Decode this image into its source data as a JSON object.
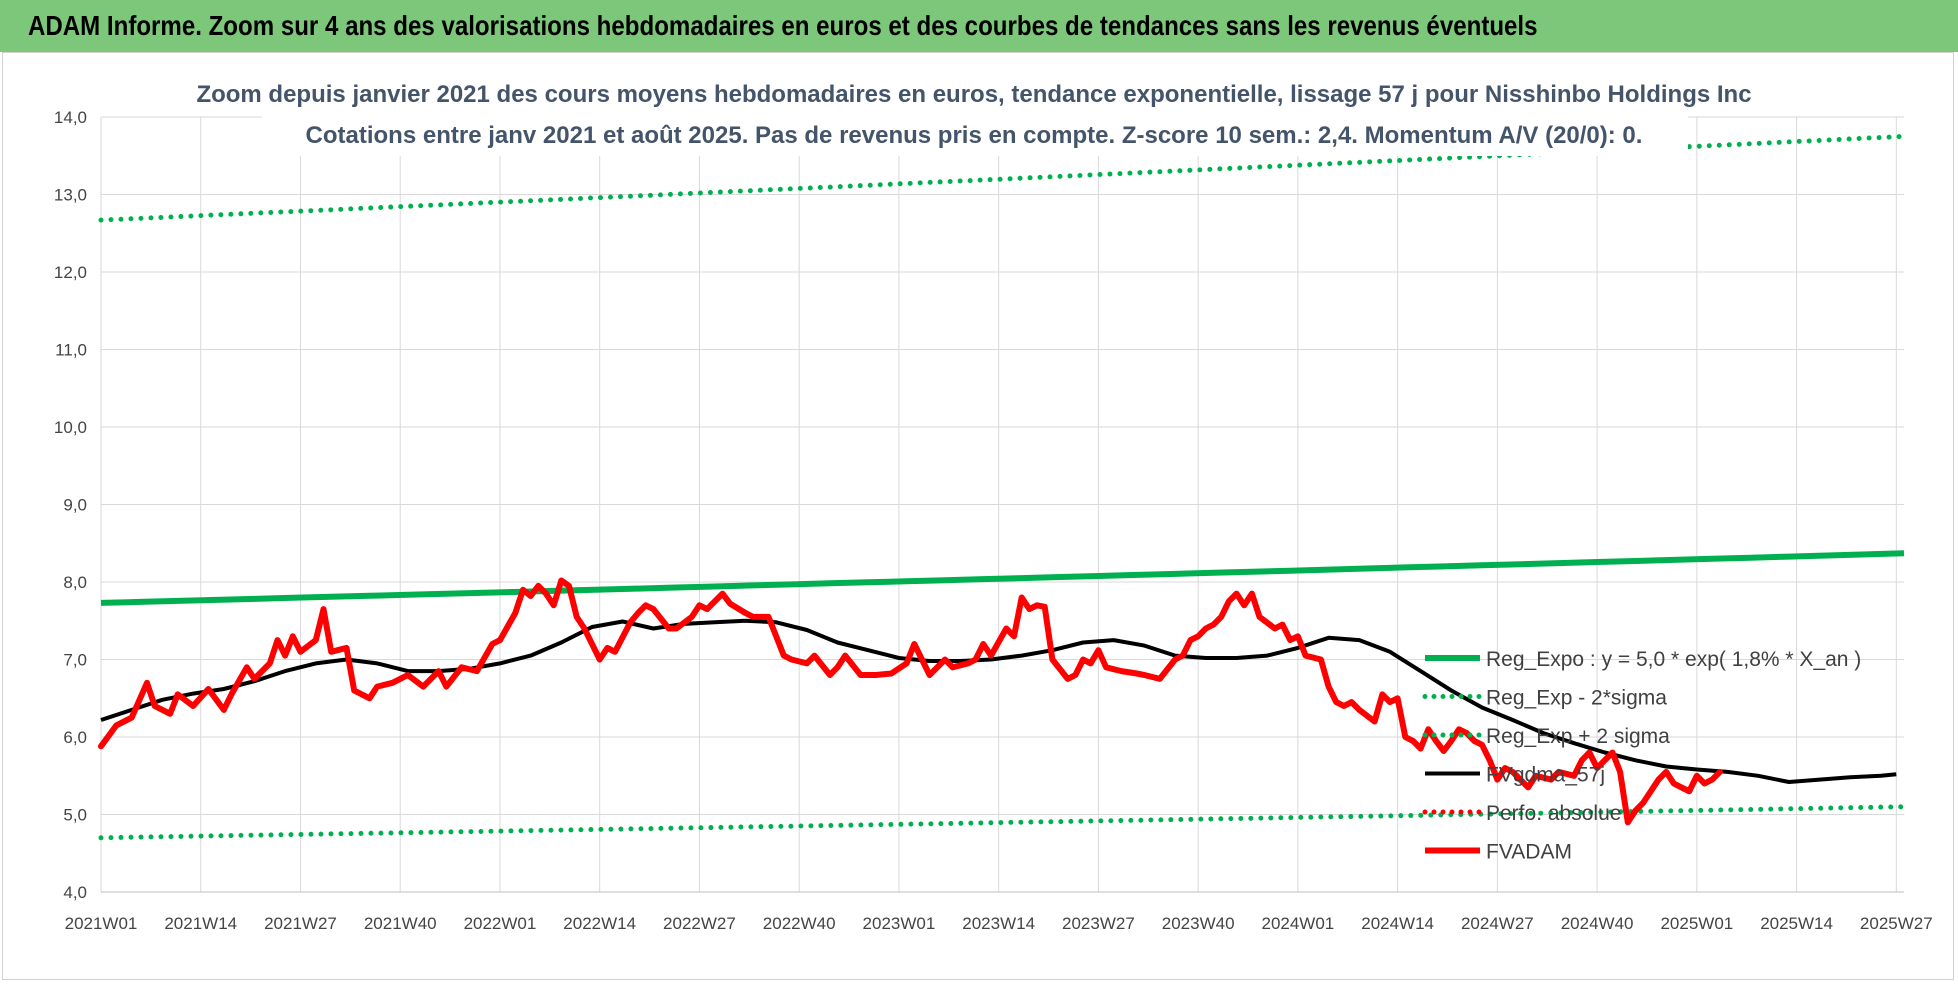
{
  "banner": {
    "title": "ADAM Informe. Zoom sur 4 ans des valorisations hebdomadaires en euros et des courbes de tendances sans les revenus éventuels"
  },
  "chart_data": {
    "type": "line",
    "title_line1": "Zoom depuis janvier 2021 des cours moyens hebdomadaires en euros, tendance exponentielle, lissage 57 j pour Nisshinbo Holdings Inc",
    "title_line2": "Cotations entre janv 2021 et août 2025.  Pas de revenus pris en compte. Z-score 10 sem.: 2,4. Momentum A/V (20/0): 0.",
    "ylim": [
      4.0,
      14.0
    ],
    "y_ticks": [
      "4,0",
      "5,0",
      "6,0",
      "7,0",
      "8,0",
      "9,0",
      "10,0",
      "11,0",
      "12,0",
      "13,0",
      "14,0"
    ],
    "x_ticks": [
      "2021W01",
      "2021W14",
      "2021W27",
      "2021W40",
      "2022W01",
      "2022W14",
      "2022W27",
      "2022W40",
      "2023W01",
      "2023W14",
      "2023W27",
      "2023W40",
      "2024W01",
      "2024W14",
      "2024W27",
      "2024W40",
      "2025W01",
      "2025W14",
      "2025W27"
    ],
    "grid": true,
    "legend_position": "right",
    "colors": {
      "trend": "#00b050",
      "smooth": "#000000",
      "price": "#ff0000",
      "band": "#00b050"
    },
    "series": [
      {
        "name": "Reg_Expo : y = 5,0 * exp( 1,8% *  X_an )",
        "style": "solid",
        "color": "#00b050",
        "start": 7.73,
        "end": 8.37
      },
      {
        "name": "Reg_Exp - 2*sigma",
        "style": "dotted",
        "color": "#00b050",
        "start": 4.7,
        "end": 5.1
      },
      {
        "name": "Reg_Exp + 2 sigma",
        "style": "dotted",
        "color": "#00b050",
        "start": 12.67,
        "end": 13.75
      },
      {
        "name": "FVgdma_57j",
        "style": "solid",
        "color": "#000000",
        "points": [
          [
            0,
            6.22
          ],
          [
            4,
            6.35
          ],
          [
            8,
            6.48
          ],
          [
            12,
            6.56
          ],
          [
            16,
            6.62
          ],
          [
            20,
            6.72
          ],
          [
            24,
            6.85
          ],
          [
            28,
            6.95
          ],
          [
            32,
            7.0
          ],
          [
            36,
            6.95
          ],
          [
            40,
            6.85
          ],
          [
            44,
            6.85
          ],
          [
            48,
            6.88
          ],
          [
            52,
            6.95
          ],
          [
            56,
            7.05
          ],
          [
            60,
            7.22
          ],
          [
            64,
            7.42
          ],
          [
            68,
            7.49
          ],
          [
            72,
            7.4
          ],
          [
            76,
            7.46
          ],
          [
            80,
            7.48
          ],
          [
            84,
            7.5
          ],
          [
            88,
            7.48
          ],
          [
            92,
            7.38
          ],
          [
            96,
            7.22
          ],
          [
            100,
            7.12
          ],
          [
            104,
            7.02
          ],
          [
            108,
            6.98
          ],
          [
            112,
            6.98
          ],
          [
            116,
            7.0
          ],
          [
            120,
            7.05
          ],
          [
            124,
            7.12
          ],
          [
            128,
            7.22
          ],
          [
            132,
            7.25
          ],
          [
            136,
            7.18
          ],
          [
            140,
            7.05
          ],
          [
            144,
            7.02
          ],
          [
            148,
            7.02
          ],
          [
            152,
            7.05
          ],
          [
            156,
            7.15
          ],
          [
            160,
            7.28
          ],
          [
            164,
            7.25
          ],
          [
            168,
            7.1
          ],
          [
            172,
            6.85
          ],
          [
            176,
            6.6
          ],
          [
            180,
            6.38
          ],
          [
            184,
            6.22
          ],
          [
            188,
            6.05
          ],
          [
            192,
            5.92
          ],
          [
            196,
            5.8
          ],
          [
            200,
            5.7
          ],
          [
            204,
            5.62
          ],
          [
            208,
            5.58
          ],
          [
            212,
            5.55
          ],
          [
            216,
            5.5
          ],
          [
            220,
            5.42
          ],
          [
            224,
            5.45
          ],
          [
            228,
            5.48
          ],
          [
            232,
            5.5
          ],
          [
            234,
            5.52
          ]
        ]
      },
      {
        "name": "Perfo. absolue",
        "style": "dotted",
        "color": "#ff0000"
      },
      {
        "name": "FVADAM",
        "style": "solid",
        "color": "#ff0000",
        "points": [
          [
            0,
            5.88
          ],
          [
            2,
            6.15
          ],
          [
            4,
            6.25
          ],
          [
            6,
            6.7
          ],
          [
            7,
            6.4
          ],
          [
            9,
            6.3
          ],
          [
            10,
            6.55
          ],
          [
            12,
            6.4
          ],
          [
            14,
            6.62
          ],
          [
            16,
            6.35
          ],
          [
            17,
            6.55
          ],
          [
            19,
            6.9
          ],
          [
            20,
            6.75
          ],
          [
            22,
            6.95
          ],
          [
            23,
            7.25
          ],
          [
            24,
            7.05
          ],
          [
            25,
            7.3
          ],
          [
            26,
            7.1
          ],
          [
            28,
            7.25
          ],
          [
            29,
            7.65
          ],
          [
            30,
            7.1
          ],
          [
            32,
            7.15
          ],
          [
            33,
            6.6
          ],
          [
            35,
            6.5
          ],
          [
            36,
            6.65
          ],
          [
            38,
            6.7
          ],
          [
            40,
            6.8
          ],
          [
            42,
            6.65
          ],
          [
            44,
            6.85
          ],
          [
            45,
            6.65
          ],
          [
            47,
            6.9
          ],
          [
            49,
            6.85
          ],
          [
            51,
            7.2
          ],
          [
            52,
            7.25
          ],
          [
            54,
            7.6
          ],
          [
            55,
            7.9
          ],
          [
            56,
            7.82
          ],
          [
            57,
            7.95
          ],
          [
            58,
            7.85
          ],
          [
            59,
            7.7
          ],
          [
            60,
            8.02
          ],
          [
            61,
            7.95
          ],
          [
            62,
            7.55
          ],
          [
            63,
            7.4
          ],
          [
            65,
            7.0
          ],
          [
            66,
            7.15
          ],
          [
            67,
            7.1
          ],
          [
            69,
            7.48
          ],
          [
            70,
            7.6
          ],
          [
            71,
            7.7
          ],
          [
            72,
            7.65
          ],
          [
            74,
            7.4
          ],
          [
            75,
            7.4
          ],
          [
            77,
            7.55
          ],
          [
            78,
            7.7
          ],
          [
            79,
            7.65
          ],
          [
            81,
            7.85
          ],
          [
            82,
            7.72
          ],
          [
            84,
            7.6
          ],
          [
            85,
            7.55
          ],
          [
            87,
            7.55
          ],
          [
            88,
            7.3
          ],
          [
            89,
            7.05
          ],
          [
            90,
            7.0
          ],
          [
            92,
            6.95
          ],
          [
            93,
            7.05
          ],
          [
            95,
            6.8
          ],
          [
            96,
            6.9
          ],
          [
            97,
            7.05
          ],
          [
            99,
            6.8
          ],
          [
            101,
            6.8
          ],
          [
            103,
            6.82
          ],
          [
            105,
            6.95
          ],
          [
            106,
            7.2
          ],
          [
            108,
            6.8
          ],
          [
            110,
            7.0
          ],
          [
            111,
            6.9
          ],
          [
            113,
            6.95
          ],
          [
            114,
            7.0
          ],
          [
            115,
            7.2
          ],
          [
            116,
            7.05
          ],
          [
            118,
            7.4
          ],
          [
            119,
            7.3
          ],
          [
            120,
            7.8
          ],
          [
            121,
            7.65
          ],
          [
            122,
            7.7
          ],
          [
            123,
            7.68
          ],
          [
            124,
            7.0
          ],
          [
            126,
            6.75
          ],
          [
            127,
            6.8
          ],
          [
            128,
            7.0
          ],
          [
            129,
            6.95
          ],
          [
            130,
            7.12
          ],
          [
            131,
            6.9
          ],
          [
            133,
            6.85
          ],
          [
            135,
            6.82
          ],
          [
            136,
            6.8
          ],
          [
            138,
            6.75
          ],
          [
            140,
            7.0
          ],
          [
            141,
            7.05
          ],
          [
            142,
            7.25
          ],
          [
            143,
            7.3
          ],
          [
            144,
            7.4
          ],
          [
            145,
            7.45
          ],
          [
            146,
            7.55
          ],
          [
            147,
            7.75
          ],
          [
            148,
            7.85
          ],
          [
            149,
            7.7
          ],
          [
            150,
            7.85
          ],
          [
            151,
            7.55
          ],
          [
            153,
            7.4
          ],
          [
            154,
            7.45
          ],
          [
            155,
            7.25
          ],
          [
            156,
            7.3
          ],
          [
            157,
            7.05
          ],
          [
            159,
            7.0
          ],
          [
            160,
            6.65
          ],
          [
            161,
            6.45
          ],
          [
            162,
            6.4
          ],
          [
            163,
            6.45
          ],
          [
            164,
            6.35
          ],
          [
            166,
            6.2
          ],
          [
            167,
            6.55
          ],
          [
            168,
            6.45
          ],
          [
            169,
            6.5
          ],
          [
            170,
            6.0
          ],
          [
            171,
            5.95
          ],
          [
            172,
            5.85
          ],
          [
            173,
            6.1
          ],
          [
            174,
            5.95
          ],
          [
            175,
            5.82
          ],
          [
            176,
            5.95
          ],
          [
            177,
            6.1
          ],
          [
            178,
            6.05
          ],
          [
            179,
            5.95
          ],
          [
            180,
            5.9
          ],
          [
            181,
            5.7
          ],
          [
            182,
            5.45
          ],
          [
            183,
            5.6
          ],
          [
            184,
            5.55
          ],
          [
            186,
            5.35
          ],
          [
            187,
            5.5
          ],
          [
            189,
            5.45
          ],
          [
            190,
            5.55
          ],
          [
            192,
            5.5
          ],
          [
            193,
            5.7
          ],
          [
            194,
            5.8
          ],
          [
            195,
            5.6
          ],
          [
            196,
            5.7
          ],
          [
            197,
            5.8
          ],
          [
            198,
            5.55
          ],
          [
            199,
            4.9
          ],
          [
            200,
            5.05
          ],
          [
            201,
            5.15
          ],
          [
            202,
            5.3
          ],
          [
            203,
            5.45
          ],
          [
            204,
            5.55
          ],
          [
            205,
            5.4
          ],
          [
            206,
            5.35
          ],
          [
            207,
            5.3
          ],
          [
            208,
            5.5
          ],
          [
            209,
            5.4
          ],
          [
            210,
            5.45
          ],
          [
            211,
            5.55
          ]
        ]
      }
    ]
  }
}
